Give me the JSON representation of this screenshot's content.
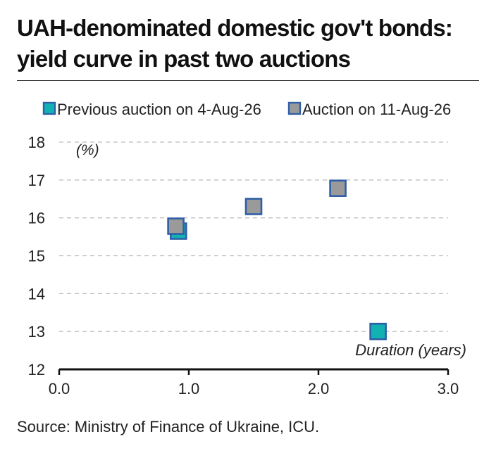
{
  "title_line1": "UAH-denominated domestic gov't bonds:",
  "title_line2": "yield curve in past two auctions",
  "source": "Source: Ministry of Finance of Ukraine, ICU.",
  "chart_data": {
    "type": "scatter",
    "title": "UAH-denominated domestic gov't bonds: yield curve in past two auctions",
    "xlabel": "Duration (years)",
    "ylabel": "(%)",
    "xlim": [
      0,
      3
    ],
    "ylim": [
      12,
      18
    ],
    "x_ticks": [
      "0.0",
      "1.0",
      "2.0",
      "3.0"
    ],
    "x_tick_values": [
      0,
      1,
      2,
      3
    ],
    "y_ticks": [
      "12",
      "13",
      "14",
      "15",
      "16",
      "17",
      "18"
    ],
    "y_tick_values": [
      12,
      13,
      14,
      15,
      16,
      17,
      18
    ],
    "grid": "horizontal dashed",
    "legend_position": "top",
    "series": [
      {
        "name": "Previous auction on 4-Aug-26",
        "color": "#12b2b2",
        "points": [
          {
            "x": 0.92,
            "y": 15.65
          },
          {
            "x": 2.46,
            "y": 13.0
          }
        ]
      },
      {
        "name": "Auction on 11-Aug-26",
        "color": "#9a9a9a",
        "points": [
          {
            "x": 0.9,
            "y": 15.78
          },
          {
            "x": 1.5,
            "y": 16.3
          },
          {
            "x": 2.15,
            "y": 16.78
          }
        ]
      }
    ],
    "marker_border": "#2f5fa6"
  }
}
